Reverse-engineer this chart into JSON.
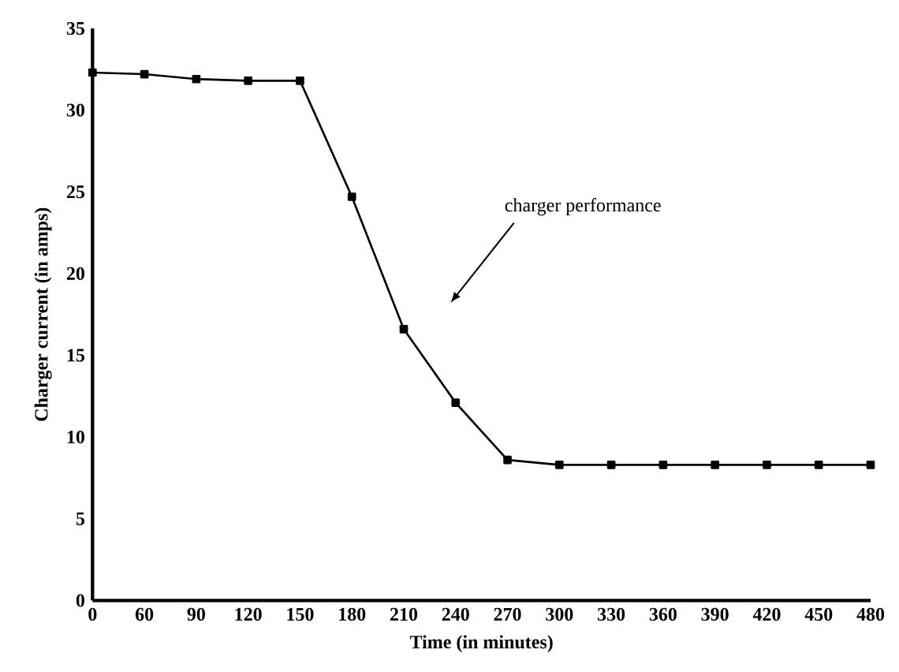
{
  "chart_data": {
    "type": "line",
    "xlabel": "Time (in minutes)",
    "ylabel": "Charger current (in amps)",
    "categories": [
      "0",
      "60",
      "90",
      "120",
      "150",
      "180",
      "210",
      "240",
      "270",
      "300",
      "330",
      "360",
      "390",
      "420",
      "450",
      "480"
    ],
    "series": [
      {
        "color": "#000000",
        "values": [
          32.3,
          32.2,
          31.9,
          31.8,
          31.8,
          24.7,
          16.6,
          12.1,
          8.6,
          8.3,
          8.3,
          8.3,
          8.3,
          8.3,
          8.3,
          8.3
        ]
      }
    ],
    "ylim": [
      0,
      35
    ],
    "yticks": [
      0,
      5,
      10,
      15,
      20,
      25,
      30,
      35
    ],
    "marker": "square",
    "line_style": "solid",
    "grid": false,
    "annotations": [
      "charger performance"
    ]
  }
}
